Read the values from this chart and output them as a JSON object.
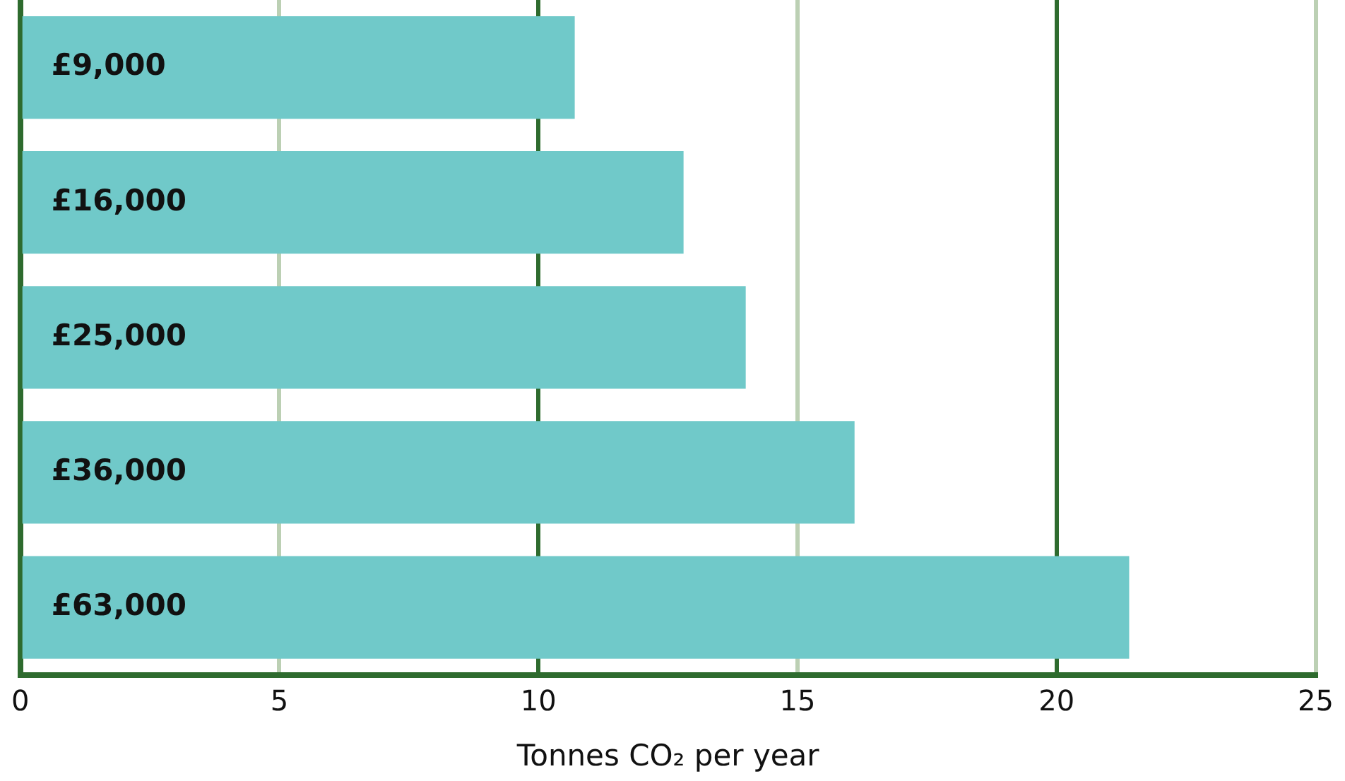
{
  "chart_data": {
    "type": "bar",
    "orientation": "horizontal",
    "xlabel": "Tonnes CO₂ per year",
    "categories": [
      "£9,000",
      "£16,000",
      "£25,000",
      "£36,000",
      "£63,000"
    ],
    "values": [
      10.7,
      12.8,
      14.0,
      16.1,
      21.4
    ],
    "color": "#70c9c9",
    "xlim": [
      0,
      25
    ],
    "xticks": [
      0,
      5,
      10,
      15,
      20,
      25
    ],
    "grid": "x",
    "legend": false
  }
}
